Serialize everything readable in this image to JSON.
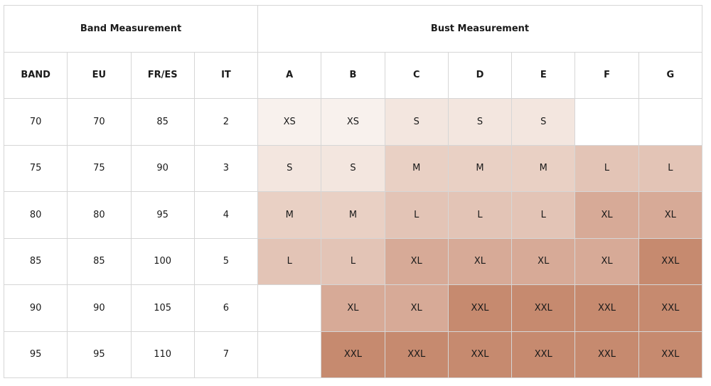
{
  "table": {
    "groups": [
      {
        "label": "Band Measurement",
        "span": 4
      },
      {
        "label": "Bust Measurement",
        "span": 7
      }
    ],
    "columns": [
      "BAND",
      "EU",
      "FR/ES",
      "IT",
      "A",
      "B",
      "C",
      "D",
      "E",
      "F",
      "G"
    ],
    "rows": [
      [
        "70",
        "70",
        "85",
        "2",
        "XS",
        "XS",
        "S",
        "S",
        "S",
        null,
        null
      ],
      [
        "75",
        "75",
        "90",
        "3",
        "S",
        "S",
        "M",
        "M",
        "M",
        "L",
        "L"
      ],
      [
        "80",
        "80",
        "95",
        "4",
        "M",
        "M",
        "L",
        "L",
        "L",
        "XL",
        "XL"
      ],
      [
        "85",
        "85",
        "100",
        "5",
        "L",
        "L",
        "XL",
        "XL",
        "XL",
        "XL",
        "XXL"
      ],
      [
        "90",
        "90",
        "105",
        "6",
        null,
        "XL",
        "XL",
        "XXL",
        "XXL",
        "XXL",
        "XXL"
      ],
      [
        "95",
        "95",
        "110",
        "7",
        null,
        "XXL",
        "XXL",
        "XXL",
        "XXL",
        "XXL",
        "XXL"
      ]
    ],
    "size_colors": {
      "XS": "#f8f1ed",
      "S": "#f3e6df",
      "M": "#e9d0c4",
      "L": "#e3c4b6",
      "XL": "#d7aa97",
      "XXL": "#c68a6f"
    }
  }
}
